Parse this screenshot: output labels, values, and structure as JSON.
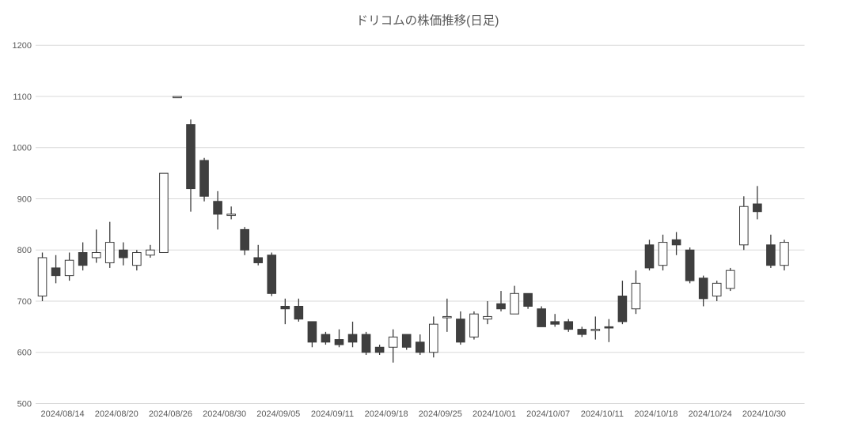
{
  "chart_data": {
    "type": "candlestick",
    "title": "ドリコムの株価推移(日足)",
    "ylabel": "",
    "xlabel": "",
    "grid": "horizontal-only",
    "legend": "none",
    "y_axis": {
      "min": 500,
      "max": 1200,
      "tick_interval": 100,
      "tick_labels": [
        "500",
        "600",
        "700",
        "800",
        "900",
        "1000",
        "1100",
        "1200"
      ]
    },
    "x_axis": {
      "label_interval": 4,
      "tick_labels": [
        "2024/08/14",
        "2024/08/20",
        "2024/08/26",
        "2024/08/30",
        "2024/09/05",
        "2024/09/11",
        "2024/09/18",
        "2024/09/25",
        "2024/10/01",
        "2024/10/07",
        "2024/10/11",
        "2024/10/18",
        "2024/10/24",
        "2024/10/30"
      ]
    },
    "colors": {
      "background": "#ffffff",
      "grid": "#d9d9d9",
      "text": "#595959",
      "outline": "#3b3b3b",
      "up_fill": "#ffffff",
      "down_fill": "#3f3f3f"
    },
    "candles": [
      {
        "date": "2024/08/14",
        "open": 710,
        "high": 795,
        "low": 700,
        "close": 785
      },
      {
        "date": "2024/08/15",
        "open": 765,
        "high": 790,
        "low": 735,
        "close": 750
      },
      {
        "date": "2024/08/16",
        "open": 750,
        "high": 795,
        "low": 740,
        "close": 780
      },
      {
        "date": "2024/08/19",
        "open": 795,
        "high": 815,
        "low": 760,
        "close": 770
      },
      {
        "date": "2024/08/20",
        "open": 785,
        "high": 840,
        "low": 775,
        "close": 795
      },
      {
        "date": "2024/08/21",
        "open": 775,
        "high": 855,
        "low": 765,
        "close": 815
      },
      {
        "date": "2024/08/22",
        "open": 800,
        "high": 815,
        "low": 770,
        "close": 785
      },
      {
        "date": "2024/08/23",
        "open": 770,
        "high": 800,
        "low": 760,
        "close": 795
      },
      {
        "date": "2024/08/26",
        "open": 790,
        "high": 810,
        "low": 785,
        "close": 800
      },
      {
        "date": "2024/08/27",
        "open": 795,
        "high": 950,
        "low": 795,
        "close": 950
      },
      {
        "date": "2024/08/28",
        "open": 1100,
        "high": 1100,
        "low": 1100,
        "close": 1100
      },
      {
        "date": "2024/08/29",
        "open": 1045,
        "high": 1055,
        "low": 875,
        "close": 920
      },
      {
        "date": "2024/08/30",
        "open": 975,
        "high": 980,
        "low": 895,
        "close": 905
      },
      {
        "date": "2024/09/02",
        "open": 895,
        "high": 915,
        "low": 840,
        "close": 870
      },
      {
        "date": "2024/09/03",
        "open": 870,
        "high": 885,
        "low": 860,
        "close": 870
      },
      {
        "date": "2024/09/04",
        "open": 840,
        "high": 845,
        "low": 790,
        "close": 800
      },
      {
        "date": "2024/09/05",
        "open": 785,
        "high": 810,
        "low": 770,
        "close": 775
      },
      {
        "date": "2024/09/06",
        "open": 790,
        "high": 795,
        "low": 710,
        "close": 715
      },
      {
        "date": "2024/09/09",
        "open": 690,
        "high": 705,
        "low": 655,
        "close": 685
      },
      {
        "date": "2024/09/10",
        "open": 690,
        "high": 705,
        "low": 660,
        "close": 665
      },
      {
        "date": "2024/09/11",
        "open": 660,
        "high": 660,
        "low": 610,
        "close": 620
      },
      {
        "date": "2024/09/12",
        "open": 635,
        "high": 640,
        "low": 615,
        "close": 620
      },
      {
        "date": "2024/09/13",
        "open": 625,
        "high": 645,
        "low": 610,
        "close": 615
      },
      {
        "date": "2024/09/17",
        "open": 635,
        "high": 660,
        "low": 610,
        "close": 620
      },
      {
        "date": "2024/09/18",
        "open": 635,
        "high": 640,
        "low": 595,
        "close": 600
      },
      {
        "date": "2024/09/19",
        "open": 610,
        "high": 615,
        "low": 595,
        "close": 600
      },
      {
        "date": "2024/09/20",
        "open": 610,
        "high": 645,
        "low": 580,
        "close": 630
      },
      {
        "date": "2024/09/24",
        "open": 635,
        "high": 635,
        "low": 605,
        "close": 610
      },
      {
        "date": "2024/09/25",
        "open": 620,
        "high": 635,
        "low": 595,
        "close": 600
      },
      {
        "date": "2024/09/26",
        "open": 600,
        "high": 670,
        "low": 590,
        "close": 655
      },
      {
        "date": "2024/09/27",
        "open": 670,
        "high": 705,
        "low": 640,
        "close": 670
      },
      {
        "date": "2024/09/30",
        "open": 665,
        "high": 680,
        "low": 615,
        "close": 620
      },
      {
        "date": "2024/10/01",
        "open": 630,
        "high": 680,
        "low": 625,
        "close": 675
      },
      {
        "date": "2024/10/02",
        "open": 665,
        "high": 700,
        "low": 655,
        "close": 670
      },
      {
        "date": "2024/10/03",
        "open": 695,
        "high": 720,
        "low": 680,
        "close": 685
      },
      {
        "date": "2024/10/04",
        "open": 675,
        "high": 730,
        "low": 675,
        "close": 715
      },
      {
        "date": "2024/10/07",
        "open": 715,
        "high": 715,
        "low": 685,
        "close": 690
      },
      {
        "date": "2024/10/08",
        "open": 685,
        "high": 690,
        "low": 650,
        "close": 650
      },
      {
        "date": "2024/10/09",
        "open": 660,
        "high": 675,
        "low": 650,
        "close": 655
      },
      {
        "date": "2024/10/10",
        "open": 660,
        "high": 665,
        "low": 640,
        "close": 645
      },
      {
        "date": "2024/10/11",
        "open": 645,
        "high": 650,
        "low": 630,
        "close": 635
      },
      {
        "date": "2024/10/15",
        "open": 645,
        "high": 670,
        "low": 625,
        "close": 645
      },
      {
        "date": "2024/10/16",
        "open": 650,
        "high": 665,
        "low": 620,
        "close": 648
      },
      {
        "date": "2024/10/17",
        "open": 710,
        "high": 740,
        "low": 655,
        "close": 660
      },
      {
        "date": "2024/10/18",
        "open": 685,
        "high": 760,
        "low": 675,
        "close": 735
      },
      {
        "date": "2024/10/21",
        "open": 810,
        "high": 820,
        "low": 760,
        "close": 765
      },
      {
        "date": "2024/10/22",
        "open": 770,
        "high": 830,
        "low": 760,
        "close": 815
      },
      {
        "date": "2024/10/23",
        "open": 820,
        "high": 835,
        "low": 790,
        "close": 810
      },
      {
        "date": "2024/10/24",
        "open": 800,
        "high": 805,
        "low": 735,
        "close": 740
      },
      {
        "date": "2024/10/25",
        "open": 745,
        "high": 750,
        "low": 690,
        "close": 705
      },
      {
        "date": "2024/10/28",
        "open": 710,
        "high": 740,
        "low": 700,
        "close": 735
      },
      {
        "date": "2024/10/29",
        "open": 725,
        "high": 765,
        "low": 720,
        "close": 760
      },
      {
        "date": "2024/10/30",
        "open": 810,
        "high": 905,
        "low": 800,
        "close": 885
      },
      {
        "date": "2024/10/31",
        "open": 890,
        "high": 925,
        "low": 860,
        "close": 875
      },
      {
        "date": "2024/11/01",
        "open": 810,
        "high": 830,
        "low": 765,
        "close": 770
      },
      {
        "date": "2024/11/05",
        "open": 770,
        "high": 820,
        "low": 760,
        "close": 815
      }
    ]
  }
}
